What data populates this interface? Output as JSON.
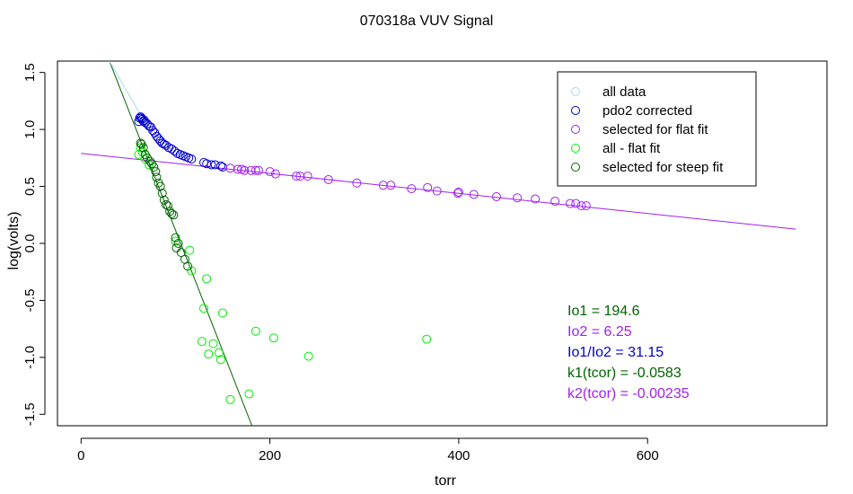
{
  "chart_data": {
    "type": "scatter",
    "title": "070318a   VUV Signal",
    "xlabel": "torr",
    "ylabel": "log(volts)",
    "xlim": [
      -25,
      790
    ],
    "ylim": [
      -1.6,
      1.6
    ],
    "x_ticks": [
      0,
      200,
      400,
      600
    ],
    "x_tick_labels": [
      "0",
      "200",
      "400",
      "600"
    ],
    "y_ticks": [
      -1.5,
      -1.0,
      -0.5,
      0.0,
      0.5,
      1.0,
      1.5
    ],
    "y_tick_labels": [
      "-1.5",
      "-1.0",
      "-0.5",
      "0.0",
      "0.5",
      "1.0",
      "1.5"
    ],
    "grid": false,
    "legend_position": "top-right",
    "legend": [
      {
        "label": "all data",
        "color": "#add8e6"
      },
      {
        "label": "pdo2 corrected",
        "color": "#0000cd"
      },
      {
        "label": "selected for flat fit",
        "color": "#a020f0"
      },
      {
        "label": "all - flat fit",
        "color": "#00ee00"
      },
      {
        "label": "selected for steep fit",
        "color": "#006400"
      }
    ],
    "series": [
      {
        "name": "pdo2 corrected",
        "color": "#0000cd",
        "x": [
          61,
          62,
          63,
          64,
          65,
          66,
          67,
          68,
          70,
          72,
          74,
          76,
          78,
          80,
          82,
          84,
          86,
          88,
          90,
          93,
          96,
          99,
          102,
          105,
          108,
          111,
          114,
          117,
          130,
          133,
          138,
          142,
          148,
          150
        ],
        "y": [
          1.07,
          1.1,
          1.11,
          1.1,
          1.09,
          1.07,
          1.08,
          1.06,
          1.05,
          1.03,
          1.02,
          0.99,
          0.97,
          0.94,
          0.92,
          0.9,
          0.88,
          0.87,
          0.86,
          0.84,
          0.83,
          0.81,
          0.79,
          0.78,
          0.77,
          0.76,
          0.75,
          0.74,
          0.71,
          0.7,
          0.69,
          0.69,
          0.68,
          0.67
        ]
      },
      {
        "name": "selected for flat fit",
        "color": "#a020f0",
        "x": [
          158,
          166,
          170,
          173,
          180,
          185,
          188,
          200,
          206,
          228,
          232,
          240,
          262,
          292,
          320,
          328,
          350,
          367,
          377,
          399,
          400,
          416,
          440,
          462,
          481,
          502,
          518,
          524,
          530,
          535
        ],
        "y": [
          0.66,
          0.65,
          0.65,
          0.64,
          0.64,
          0.64,
          0.64,
          0.63,
          0.61,
          0.59,
          0.59,
          0.59,
          0.56,
          0.53,
          0.51,
          0.51,
          0.48,
          0.49,
          0.46,
          0.44,
          0.45,
          0.43,
          0.41,
          0.4,
          0.39,
          0.37,
          0.35,
          0.35,
          0.33,
          0.33
        ]
      },
      {
        "name": "all - flat fit",
        "color": "#00ee00",
        "x": [
          61,
          63,
          65,
          68,
          72,
          100,
          115,
          117,
          130,
          133,
          128,
          135,
          140,
          146,
          148,
          150,
          158,
          178,
          185,
          204,
          241,
          366
        ],
        "y": [
          0.78,
          0.84,
          0.8,
          0.74,
          0.69,
          0.02,
          -0.06,
          -0.24,
          -0.57,
          -0.31,
          -0.86,
          -0.97,
          -0.88,
          -0.96,
          -1.02,
          -0.61,
          -1.37,
          -1.32,
          -0.77,
          -0.83,
          -0.99,
          -0.84
        ]
      },
      {
        "name": "selected for steep fit",
        "color": "#006400",
        "x": [
          63,
          64,
          66,
          68,
          70,
          73,
          75,
          77,
          79,
          80,
          82,
          84,
          86,
          88,
          90,
          92,
          94,
          96,
          98,
          100,
          101,
          103,
          106,
          110,
          113
        ],
        "y": [
          0.88,
          0.87,
          0.84,
          0.78,
          0.75,
          0.72,
          0.7,
          0.67,
          0.63,
          0.58,
          0.53,
          0.5,
          0.44,
          0.38,
          0.34,
          0.33,
          0.28,
          0.26,
          0.25,
          0.05,
          -0.04,
          0.0,
          -0.08,
          -0.14,
          -0.2
        ]
      }
    ],
    "lines": [
      {
        "name": "flat fit",
        "color": "#a020f0",
        "x": [
          0,
          757
        ],
        "y": [
          0.79,
          0.125
        ]
      },
      {
        "name": "steep fit",
        "color": "#006400",
        "x": [
          30,
          181
        ],
        "y": [
          1.6,
          -1.6
        ]
      },
      {
        "name": "all data trend",
        "color": "#add8e6",
        "x": [
          30,
          65
        ],
        "y": [
          1.6,
          1.1
        ]
      }
    ],
    "annotations": [
      {
        "text": "Io1 =  194.6",
        "color": "#006400"
      },
      {
        "text": "Io2 =  6.25",
        "color": "#a020f0"
      },
      {
        "text": "Io1/Io2 =  31.15",
        "color": "#0000cd"
      },
      {
        "text": "k1(tcor) =  -0.0583",
        "color": "#006400"
      },
      {
        "text": "k2(tcor) =  -0.00235",
        "color": "#a020f0"
      }
    ]
  }
}
